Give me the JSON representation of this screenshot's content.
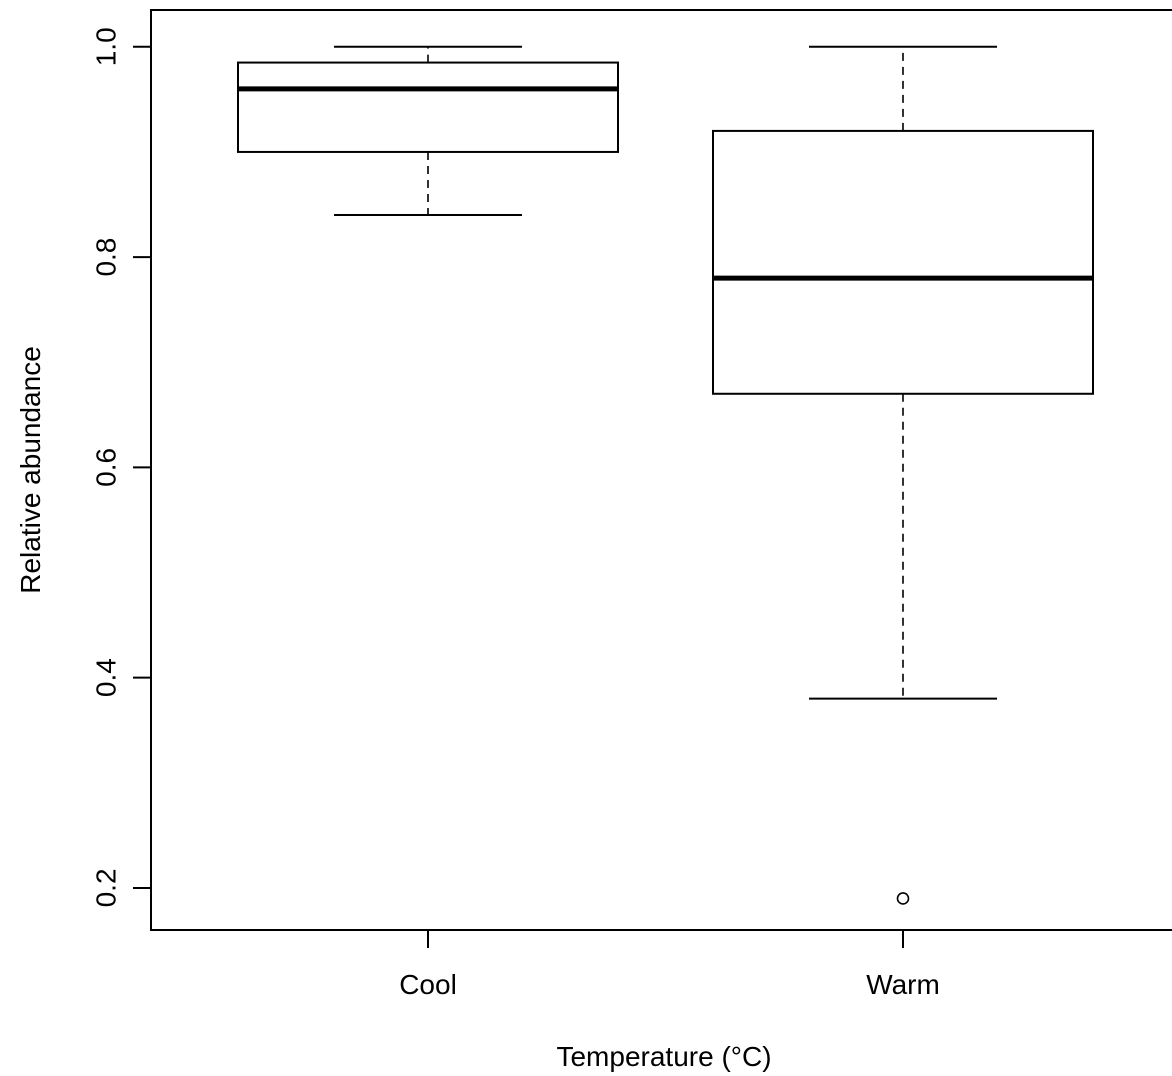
{
  "chart_data": {
    "type": "box",
    "title": "",
    "xlabel": "Temperature (°C)",
    "ylabel": "Relative abundance",
    "ylim": [
      0.16,
      1.035
    ],
    "yticks": [
      "0.2",
      "0.4",
      "0.6",
      "0.8",
      "1.0"
    ],
    "ytick_values": [
      0.2,
      0.4,
      0.6,
      0.8,
      1.0
    ],
    "grid": false,
    "legend": "none",
    "categories": [
      "Cool",
      "Warm"
    ],
    "boxes": [
      {
        "category": "Cool",
        "whisker_low": 0.84,
        "q1": 0.9,
        "median": 0.96,
        "q3": 0.985,
        "whisker_high": 1.0,
        "outliers": []
      },
      {
        "category": "Warm",
        "whisker_low": 0.38,
        "q1": 0.67,
        "median": 0.78,
        "q3": 0.92,
        "whisker_high": 1.0,
        "outliers": [
          0.19
        ]
      }
    ]
  }
}
